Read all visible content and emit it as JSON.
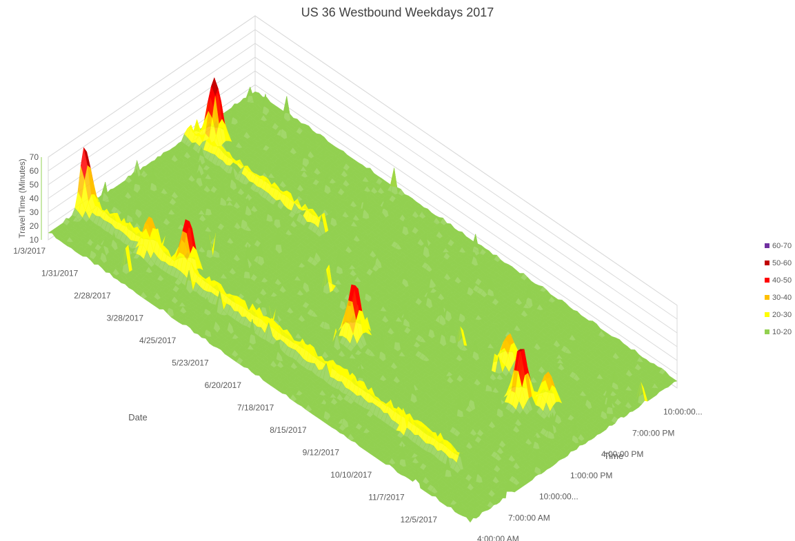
{
  "chart_data": {
    "type": "surface",
    "title": "US 36 Westbound Weekdays 2017",
    "xlabel": "Time",
    "ylabel": "Date",
    "zlabel": "Travel Time (Minutes)",
    "zlim": [
      10,
      70
    ],
    "z_ticks": [
      "70",
      "60",
      "50",
      "40",
      "30",
      "20",
      "10"
    ],
    "x_ticks": [
      "4:00:00 AM",
      "7:00:00 AM",
      "10:00:00...",
      "1:00:00 PM",
      "4:00:00 PM",
      "7:00:00 PM",
      "10:00:00..."
    ],
    "y_ticks": [
      "1/3/2017",
      "1/31/2017",
      "2/28/2017",
      "3/28/2017",
      "4/25/2017",
      "5/23/2017",
      "6/20/2017",
      "7/18/2017",
      "8/15/2017",
      "9/12/2017",
      "10/10/2017",
      "11/7/2017",
      "12/5/2017"
    ],
    "legend": {
      "position": "right",
      "items": [
        {
          "label": "60-70",
          "color": "#7030a0"
        },
        {
          "label": "50-60",
          "color": "#c00000"
        },
        {
          "label": "40-50",
          "color": "#ff0000"
        },
        {
          "label": "30-40",
          "color": "#ffc000"
        },
        {
          "label": "20-30",
          "color": "#ffff00"
        },
        {
          "label": "10-20",
          "color": "#92d050"
        }
      ]
    },
    "baseline_minutes": 15,
    "peaks": [
      {
        "date": "1/3/2017",
        "time": "7:30:00 AM",
        "value": 60
      },
      {
        "date": "1/17/2017",
        "time": "6:30:00 PM",
        "value": 62
      },
      {
        "date": "2/28/2017",
        "time": "7:30:00 AM",
        "value": 42
      },
      {
        "date": "3/28/2017",
        "time": "8:00:00 AM",
        "value": 55
      },
      {
        "date": "7/18/2017",
        "time": "11:30:00 AM",
        "value": 56
      },
      {
        "date": "10/10/2017",
        "time": "5:00:00 PM",
        "value": 38
      },
      {
        "date": "11/7/2017",
        "time": "3:00:00 PM",
        "value": 57
      },
      {
        "date": "11/21/2017",
        "time": "4:00:00 PM",
        "value": 40
      }
    ],
    "ridges": [
      {
        "time": "7:30:00 AM",
        "from_date": "1/3/2017",
        "to_date": "11/21/2017",
        "value": 26
      },
      {
        "time": "5:30:00 PM",
        "from_date": "1/3/2017",
        "to_date": "4/25/2017",
        "value": 23
      }
    ]
  }
}
